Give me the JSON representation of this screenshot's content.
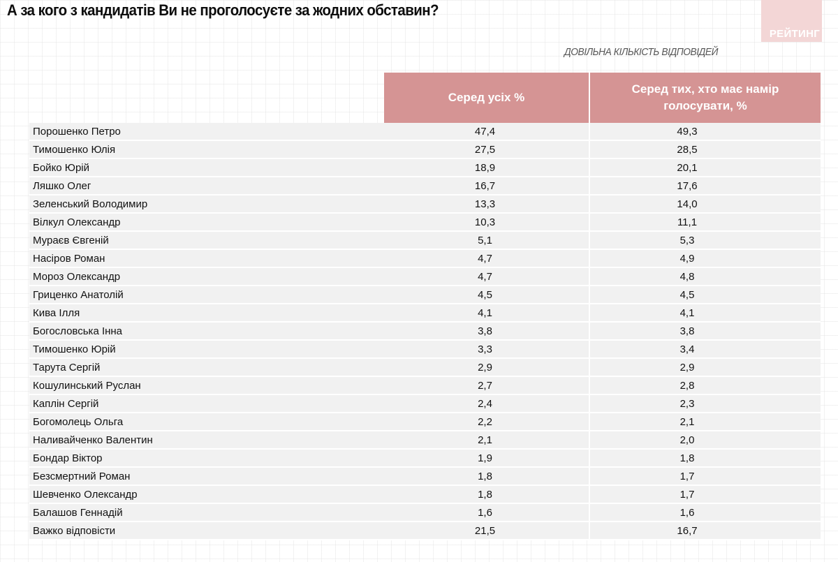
{
  "title": "А за кого з кандидатів Ви не проголосуєте за жодних обставин?",
  "logo_text": "РЕЙТИНГ",
  "subtitle": "ДОВІЛЬНА КІЛЬКІСТЬ ВІДПОВІДЕЙ",
  "colors": {
    "header_bg": "#d59494",
    "row_bg": "#f1f1f1",
    "logo_bg": "#f3d6d6"
  },
  "table": {
    "headers": [
      "Серед усіх %",
      "Серед тих, хто має намір голосувати, %"
    ],
    "rows": [
      {
        "name": "Порошенко Петро",
        "all": "47,4",
        "voters": "49,3"
      },
      {
        "name": "Тимошенко Юлія",
        "all": "27,5",
        "voters": "28,5"
      },
      {
        "name": "Бойко Юрій",
        "all": "18,9",
        "voters": "20,1"
      },
      {
        "name": "Ляшко Олег",
        "all": "16,7",
        "voters": "17,6"
      },
      {
        "name": "Зеленський Володимир",
        "all": "13,3",
        "voters": "14,0"
      },
      {
        "name": "Вілкул Олександр",
        "all": "10,3",
        "voters": "11,1"
      },
      {
        "name": "Мураєв Євгеній",
        "all": "5,1",
        "voters": "5,3"
      },
      {
        "name": "Насіров Роман",
        "all": "4,7",
        "voters": "4,9"
      },
      {
        "name": "Мороз Олександр",
        "all": "4,7",
        "voters": "4,8"
      },
      {
        "name": "Гриценко Анатолій",
        "all": "4,5",
        "voters": "4,5"
      },
      {
        "name": "Кива Ілля",
        "all": "4,1",
        "voters": "4,1"
      },
      {
        "name": "Богословська Інна",
        "all": "3,8",
        "voters": "3,8"
      },
      {
        "name": "Тимошенко Юрій",
        "all": "3,3",
        "voters": "3,4"
      },
      {
        "name": "Тарута Сергій",
        "all": "2,9",
        "voters": "2,9"
      },
      {
        "name": "Кошулинський Руслан",
        "all": "2,7",
        "voters": "2,8"
      },
      {
        "name": "Каплін Сергій",
        "all": "2,4",
        "voters": "2,3"
      },
      {
        "name": "Богомолець Ольга",
        "all": "2,2",
        "voters": "2,1"
      },
      {
        "name": "Наливайченко Валентин",
        "all": "2,1",
        "voters": "2,0"
      },
      {
        "name": "Бондар Віктор",
        "all": "1,9",
        "voters": "1,8"
      },
      {
        "name": "Безсмертний Роман",
        "all": "1,8",
        "voters": "1,7"
      },
      {
        "name": "Шевченко Олександр",
        "all": "1,8",
        "voters": "1,7"
      },
      {
        "name": "Балашов Геннадій",
        "all": "1,6",
        "voters": "1,6"
      },
      {
        "name": "Важко відповісти",
        "all": "21,5",
        "voters": "16,7"
      }
    ]
  },
  "chart_data": {
    "type": "table",
    "title": "А за кого з кандидатів Ви не проголосуєте за жодних обставин?",
    "subtitle": "ДОВІЛЬНА КІЛЬКІСТЬ ВІДПОВІДЕЙ",
    "categories": [
      "Порошенко Петро",
      "Тимошенко Юлія",
      "Бойко Юрій",
      "Ляшко Олег",
      "Зеленський Володимир",
      "Вілкул Олександр",
      "Мураєв Євгеній",
      "Насіров Роман",
      "Мороз Олександр",
      "Гриценко Анатолій",
      "Кива Ілля",
      "Богословська Інна",
      "Тимошенко Юрій",
      "Тарута Сергій",
      "Кошулинський Руслан",
      "Каплін Сергій",
      "Богомолець Ольга",
      "Наливайченко Валентин",
      "Бондар Віктор",
      "Безсмертний Роман",
      "Шевченко Олександр",
      "Балашов Геннадій",
      "Важко відповісти"
    ],
    "series": [
      {
        "name": "Серед усіх %",
        "values": [
          47.4,
          27.5,
          18.9,
          16.7,
          13.3,
          10.3,
          5.1,
          4.7,
          4.7,
          4.5,
          4.1,
          3.8,
          3.3,
          2.9,
          2.7,
          2.4,
          2.2,
          2.1,
          1.9,
          1.8,
          1.8,
          1.6,
          21.5
        ]
      },
      {
        "name": "Серед тих, хто має намір голосувати, %",
        "values": [
          49.3,
          28.5,
          20.1,
          17.6,
          14.0,
          11.1,
          5.3,
          4.9,
          4.8,
          4.5,
          4.1,
          3.8,
          3.4,
          2.9,
          2.8,
          2.3,
          2.1,
          2.0,
          1.8,
          1.7,
          1.7,
          1.6,
          16.7
        ]
      }
    ]
  }
}
